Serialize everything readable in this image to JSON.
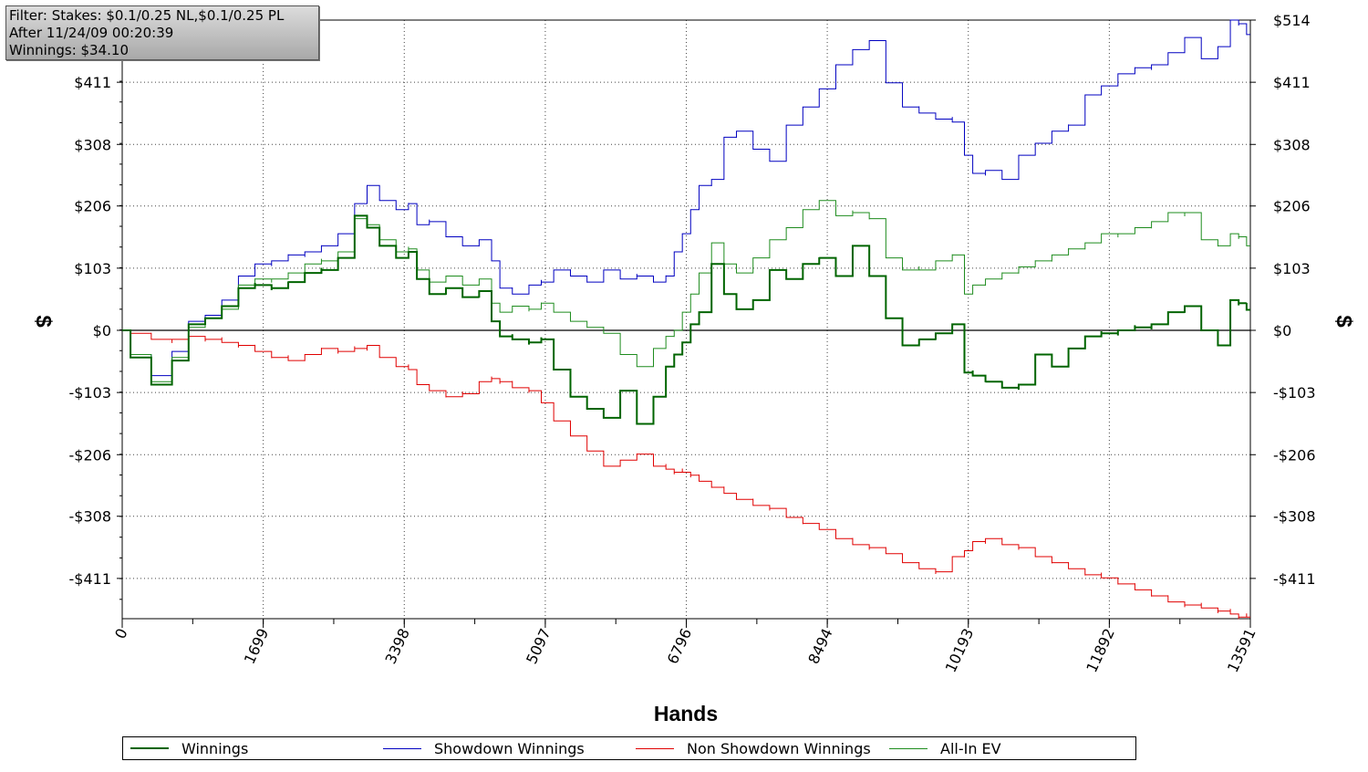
{
  "info_box": {
    "line1": "Filter: Stakes: $0.1/0.25 NL,$0.1/0.25 PL",
    "line2": "After 11/24/09 00:20:39",
    "line3": "Winnings: $34.10"
  },
  "chart_data": {
    "type": "line",
    "xlabel": "Hands",
    "ylabel": "$",
    "xlim": [
      0,
      13591
    ],
    "ylim": [
      -480,
      514
    ],
    "x_ticks": [
      0,
      1699,
      3398,
      5097,
      6796,
      8494,
      10193,
      11892,
      13591
    ],
    "x_tick_labels": [
      "0",
      "1699",
      "3398",
      "5097",
      "6796",
      "8494",
      "10193",
      "11892",
      "13591"
    ],
    "y_ticks": [
      514,
      411,
      308,
      206,
      103,
      0,
      -103,
      -206,
      -308,
      -411
    ],
    "y_tick_labels": [
      "$514",
      "$411",
      "$308",
      "$206",
      "$103",
      "$0",
      "-$103",
      "-$206",
      "-$308",
      "-$411"
    ],
    "grid": true,
    "legend_position": "bottom",
    "series": [
      {
        "name": "Winnings",
        "color": "#006400",
        "width": 2,
        "x": [
          0,
          200,
          500,
          700,
          900,
          1100,
          1300,
          1500,
          1699,
          1900,
          2100,
          2300,
          2500,
          2700,
          2900,
          3000,
          3200,
          3398,
          3500,
          3600,
          3800,
          4000,
          4200,
          4400,
          4500,
          4600,
          4800,
          5000,
          5097,
          5300,
          5500,
          5700,
          5900,
          6100,
          6300,
          6500,
          6600,
          6700,
          6796,
          6900,
          7000,
          7200,
          7300,
          7500,
          7700,
          7900,
          8100,
          8300,
          8494,
          8700,
          8900,
          9100,
          9300,
          9500,
          9700,
          9900,
          10100,
          10193,
          10300,
          10500,
          10700,
          10900,
          11100,
          11300,
          11500,
          11700,
          11892,
          12100,
          12300,
          12500,
          12700,
          12900,
          13100,
          13300,
          13400,
          13500,
          13591
        ],
        "y": [
          0,
          -45,
          -90,
          -50,
          10,
          20,
          40,
          70,
          75,
          70,
          80,
          95,
          100,
          120,
          190,
          170,
          140,
          120,
          130,
          85,
          60,
          70,
          55,
          65,
          15,
          -10,
          -15,
          -20,
          -15,
          -65,
          -110,
          -130,
          -145,
          -100,
          -155,
          -110,
          -60,
          -40,
          -20,
          10,
          30,
          110,
          60,
          35,
          50,
          100,
          85,
          110,
          120,
          90,
          140,
          90,
          20,
          -25,
          -15,
          -5,
          10,
          -70,
          -75,
          -85,
          -95,
          -90,
          -40,
          -60,
          -30,
          -10,
          -5,
          0,
          5,
          10,
          30,
          40,
          0,
          -25,
          50,
          45,
          34.1
        ]
      },
      {
        "name": "Showdown Winnings",
        "color": "#0000c0",
        "width": 1,
        "x": [
          0,
          200,
          500,
          700,
          900,
          1100,
          1300,
          1500,
          1699,
          1900,
          2100,
          2300,
          2500,
          2700,
          2900,
          3000,
          3200,
          3398,
          3500,
          3600,
          3800,
          4000,
          4200,
          4400,
          4500,
          4600,
          4800,
          5000,
          5097,
          5300,
          5500,
          5700,
          5900,
          6100,
          6300,
          6500,
          6600,
          6700,
          6796,
          6900,
          7000,
          7200,
          7300,
          7500,
          7700,
          7900,
          8100,
          8300,
          8494,
          8700,
          8900,
          9100,
          9300,
          9500,
          9700,
          9900,
          10100,
          10193,
          10300,
          10500,
          10700,
          10900,
          11100,
          11300,
          11500,
          11700,
          11892,
          12100,
          12300,
          12500,
          12700,
          12900,
          13100,
          13300,
          13400,
          13500,
          13591
        ],
        "y": [
          0,
          -40,
          -75,
          -35,
          15,
          25,
          50,
          90,
          110,
          115,
          125,
          130,
          140,
          160,
          210,
          240,
          215,
          200,
          210,
          175,
          180,
          155,
          140,
          150,
          115,
          70,
          60,
          75,
          80,
          100,
          90,
          80,
          100,
          85,
          90,
          80,
          90,
          130,
          160,
          200,
          240,
          250,
          320,
          330,
          300,
          280,
          340,
          370,
          400,
          440,
          465,
          480,
          410,
          370,
          360,
          350,
          345,
          290,
          260,
          265,
          250,
          290,
          310,
          330,
          340,
          390,
          405,
          425,
          435,
          440,
          460,
          485,
          450,
          470,
          514,
          508,
          490
        ]
      },
      {
        "name": "Non Showdown Winnings",
        "color": "#e00000",
        "width": 1,
        "x": [
          0,
          200,
          500,
          700,
          900,
          1100,
          1300,
          1500,
          1699,
          1900,
          2100,
          2300,
          2500,
          2700,
          2900,
          3000,
          3200,
          3398,
          3500,
          3600,
          3800,
          4000,
          4200,
          4400,
          4500,
          4600,
          4800,
          5000,
          5097,
          5300,
          5500,
          5700,
          5900,
          6100,
          6300,
          6500,
          6600,
          6700,
          6796,
          6900,
          7000,
          7200,
          7300,
          7500,
          7700,
          7900,
          8100,
          8300,
          8494,
          8700,
          8900,
          9100,
          9300,
          9500,
          9700,
          9900,
          10100,
          10193,
          10300,
          10500,
          10700,
          10900,
          11100,
          11300,
          11500,
          11700,
          11892,
          12100,
          12300,
          12500,
          12700,
          12900,
          13100,
          13300,
          13400,
          13500,
          13591
        ],
        "y": [
          0,
          -5,
          -15,
          -15,
          -10,
          -15,
          -20,
          -25,
          -35,
          -45,
          -50,
          -40,
          -30,
          -35,
          -30,
          -25,
          -45,
          -60,
          -65,
          -90,
          -100,
          -110,
          -105,
          -85,
          -80,
          -85,
          -95,
          -100,
          -120,
          -150,
          -175,
          -200,
          -225,
          -215,
          -205,
          -225,
          -230,
          -235,
          -235,
          -240,
          -250,
          -260,
          -270,
          -280,
          -290,
          -295,
          -310,
          -320,
          -330,
          -345,
          -355,
          -360,
          -370,
          -385,
          -395,
          -400,
          -375,
          -365,
          -350,
          -345,
          -355,
          -360,
          -375,
          -385,
          -395,
          -405,
          -410,
          -420,
          -430,
          -440,
          -450,
          -455,
          -460,
          -465,
          -470,
          -475,
          -475
        ]
      },
      {
        "name": "All-In EV",
        "color": "#1e8c1e",
        "width": 1,
        "x": [
          0,
          200,
          500,
          700,
          900,
          1100,
          1300,
          1500,
          1699,
          1900,
          2100,
          2300,
          2500,
          2700,
          2900,
          3000,
          3200,
          3398,
          3500,
          3600,
          3800,
          4000,
          4200,
          4400,
          4500,
          4600,
          4800,
          5000,
          5097,
          5300,
          5500,
          5700,
          5900,
          6100,
          6300,
          6500,
          6600,
          6700,
          6796,
          6900,
          7000,
          7200,
          7300,
          7500,
          7700,
          7900,
          8100,
          8300,
          8494,
          8700,
          8900,
          9100,
          9300,
          9500,
          9700,
          9900,
          10100,
          10193,
          10300,
          10500,
          10700,
          10900,
          11100,
          11300,
          11500,
          11700,
          11892,
          12100,
          12300,
          12500,
          12700,
          12900,
          13100,
          13300,
          13400,
          13500,
          13591
        ],
        "y": [
          0,
          -40,
          -85,
          -45,
          5,
          20,
          35,
          75,
          85,
          85,
          95,
          110,
          115,
          130,
          185,
          175,
          150,
          130,
          135,
          100,
          80,
          90,
          75,
          85,
          45,
          30,
          40,
          35,
          45,
          30,
          15,
          5,
          -5,
          -40,
          -60,
          -30,
          -10,
          0,
          30,
          60,
          95,
          145,
          110,
          95,
          120,
          150,
          170,
          200,
          215,
          190,
          195,
          185,
          120,
          100,
          100,
          115,
          125,
          60,
          75,
          85,
          95,
          105,
          115,
          125,
          135,
          145,
          160,
          160,
          170,
          180,
          195,
          195,
          150,
          140,
          160,
          155,
          140
        ]
      }
    ]
  },
  "legend": {
    "items": [
      {
        "label": "Winnings",
        "color": "#006400"
      },
      {
        "label": "Showdown Winnings",
        "color": "#0000c0"
      },
      {
        "label": "Non Showdown Winnings",
        "color": "#e00000"
      },
      {
        "label": "All-In EV",
        "color": "#1e8c1e"
      }
    ]
  }
}
